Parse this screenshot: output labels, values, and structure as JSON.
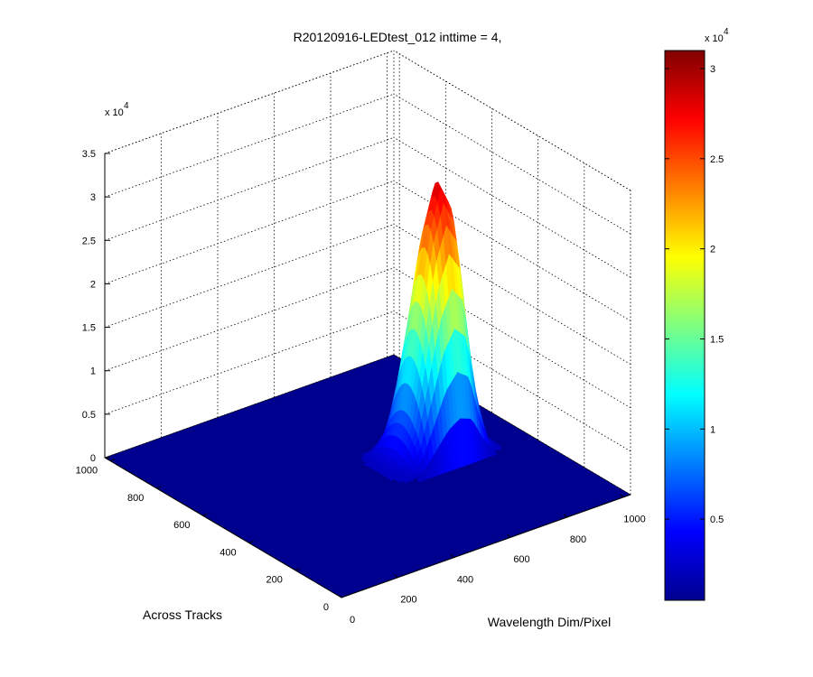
{
  "chart_data": {
    "type": "surface",
    "title": "R20120916-LEDtest_012 inttime = 4,",
    "xlabel": "Wavelength Dim/Pixel",
    "ylabel": "Across Tracks",
    "zlabel": "",
    "z_multiplier": "x 10",
    "z_multiplier_exp": "4",
    "xlim": [
      0,
      1024
    ],
    "ylim": [
      0,
      1024
    ],
    "zlim": [
      0,
      35000
    ],
    "x_ticks": [
      "0",
      "200",
      "400",
      "600",
      "800",
      "1000"
    ],
    "y_ticks": [
      "0",
      "200",
      "400",
      "600",
      "800",
      "1000"
    ],
    "z_ticks": [
      "0",
      "0.5",
      "1",
      "1.5",
      "2",
      "2.5",
      "3",
      "3.5"
    ],
    "grid": true,
    "colormap": "jet",
    "colorbar": {
      "range": [
        500,
        31000
      ],
      "ticks": [
        "0.5",
        "1",
        "1.5",
        "2",
        "2.5",
        "3"
      ],
      "multiplier": "x 10",
      "multiplier_exp": "4"
    },
    "surface_peak": {
      "profile_x": [
        0,
        40,
        80,
        120,
        160,
        200,
        240,
        280,
        320,
        360,
        400,
        440,
        480,
        520,
        560,
        600,
        640,
        680,
        720,
        760,
        800,
        840,
        880,
        920,
        960,
        1000
      ],
      "profile_z": [
        0,
        0,
        0,
        0,
        0,
        0,
        0,
        0,
        0,
        0,
        0,
        0,
        0,
        0,
        300,
        1500,
        6000,
        16000,
        26000,
        31000,
        28000,
        12000,
        1500,
        0,
        0,
        0
      ],
      "track_center": 512,
      "track_halfwidth": 110
    }
  }
}
